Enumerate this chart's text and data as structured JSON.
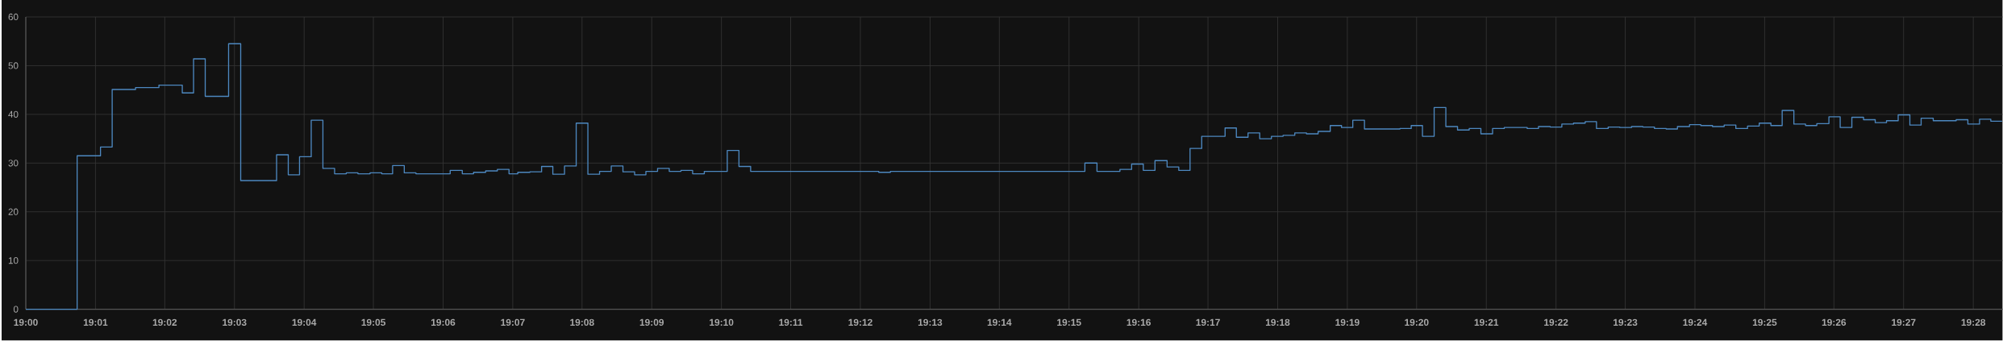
{
  "chart_data": {
    "type": "step",
    "color": "#4d88c0",
    "grid": true,
    "xlim": [
      19.0,
      19.4737
    ],
    "ylim": [
      0,
      60
    ],
    "yticks": [
      0,
      10,
      20,
      30,
      40,
      50,
      60
    ],
    "xticks": [
      {
        "value": 19.0,
        "label": "19:00"
      },
      {
        "value": 19.0167,
        "label": "19:01"
      },
      {
        "value": 19.0333,
        "label": "19:02"
      },
      {
        "value": 19.05,
        "label": "19:03"
      },
      {
        "value": 19.0667,
        "label": "19:04"
      },
      {
        "value": 19.0833,
        "label": "19:05"
      },
      {
        "value": 19.1,
        "label": "19:06"
      },
      {
        "value": 19.1167,
        "label": "19:07"
      },
      {
        "value": 19.1333,
        "label": "19:08"
      },
      {
        "value": 19.15,
        "label": "19:09"
      },
      {
        "value": 19.1667,
        "label": "19:10"
      },
      {
        "value": 19.1833,
        "label": "19:11"
      },
      {
        "value": 19.2,
        "label": "19:12"
      },
      {
        "value": 19.2167,
        "label": "19:13"
      },
      {
        "value": 19.2333,
        "label": "19:14"
      },
      {
        "value": 19.25,
        "label": "19:15"
      },
      {
        "value": 19.2667,
        "label": "19:16"
      },
      {
        "value": 19.2833,
        "label": "19:17"
      },
      {
        "value": 19.3,
        "label": "19:18"
      },
      {
        "value": 19.3167,
        "label": "19:19"
      },
      {
        "value": 19.3333,
        "label": "19:20"
      },
      {
        "value": 19.35,
        "label": "19:21"
      },
      {
        "value": 19.3667,
        "label": "19:22"
      },
      {
        "value": 19.3833,
        "label": "19:23"
      },
      {
        "value": 19.4,
        "label": "19:24"
      },
      {
        "value": 19.4167,
        "label": "19:25"
      },
      {
        "value": 19.4333,
        "label": "19:26"
      },
      {
        "value": 19.45,
        "label": "19:27"
      },
      {
        "value": 19.4667,
        "label": "19:28"
      }
    ],
    "x": [
      19.0,
      19.0123,
      19.0179,
      19.0207,
      19.0263,
      19.0319,
      19.0375,
      19.0402,
      19.043,
      19.0486,
      19.0515,
      19.0601,
      19.0629,
      19.0656,
      19.0684,
      19.0712,
      19.074,
      19.0768,
      19.0796,
      19.0825,
      19.0853,
      19.0879,
      19.0907,
      19.0935,
      19.1017,
      19.1046,
      19.1073,
      19.1102,
      19.113,
      19.1158,
      19.1179,
      19.1208,
      19.1236,
      19.1263,
      19.1291,
      19.1319,
      19.1347,
      19.1375,
      19.1403,
      19.1431,
      19.1459,
      19.1486,
      19.1514,
      19.1542,
      19.157,
      19.1598,
      19.1626,
      19.1681,
      19.1709,
      19.1737,
      19.2044,
      19.2072,
      19.2538,
      19.2567,
      19.2622,
      19.265,
      19.2678,
      19.2706,
      19.2735,
      19.2763,
      19.279,
      19.2818,
      19.2874,
      19.2901,
      19.2929,
      19.2957,
      19.2985,
      19.3013,
      19.3041,
      19.3069,
      19.3097,
      19.3126,
      19.3153,
      19.318,
      19.3208,
      19.3293,
      19.332,
      19.3347,
      19.3375,
      19.3403,
      19.3431,
      19.3459,
      19.3487,
      19.3515,
      19.3543,
      19.3598,
      19.3625,
      19.3653,
      19.3681,
      19.3709,
      19.3737,
      19.3764,
      19.3792,
      19.382,
      19.3848,
      19.3875,
      19.3903,
      19.3931,
      19.3958,
      19.3987,
      19.4014,
      19.4042,
      19.407,
      19.4098,
      19.4126,
      19.4154,
      19.4182,
      19.4209,
      19.4237,
      19.4265,
      19.4292,
      19.4321,
      19.4348,
      19.4376,
      19.4404,
      19.4432,
      19.4459,
      19.4487,
      19.4515,
      19.4542,
      19.4571,
      19.4626,
      19.4654,
      19.4682,
      19.4709,
      19.4736
    ],
    "values": [
      0,
      31.5,
      33.3,
      45.1,
      45.5,
      46.0,
      44.4,
      51.4,
      43.7,
      54.5,
      26.4,
      31.7,
      27.6,
      31.3,
      38.8,
      28.9,
      27.8,
      28.0,
      27.8,
      28.0,
      27.8,
      29.5,
      28.0,
      27.8,
      28.5,
      27.8,
      28.1,
      28.4,
      28.7,
      27.8,
      28.1,
      28.2,
      29.3,
      27.7,
      29.4,
      38.2,
      27.7,
      28.3,
      29.4,
      28.2,
      27.6,
      28.3,
      28.9,
      28.3,
      28.5,
      27.8,
      28.3,
      32.6,
      29.3,
      28.3,
      28.1,
      28.3,
      30.0,
      28.3,
      28.7,
      29.8,
      28.5,
      30.5,
      29.2,
      28.5,
      33.0,
      35.5,
      37.2,
      35.3,
      36.2,
      35.0,
      35.5,
      35.7,
      36.2,
      36.0,
      36.5,
      37.7,
      37.3,
      38.8,
      37.0,
      37.1,
      37.7,
      35.5,
      41.4,
      37.5,
      36.8,
      37.1,
      36.0,
      37.1,
      37.3,
      37.1,
      37.5,
      37.4,
      38.0,
      38.2,
      38.5,
      37.1,
      37.4,
      37.3,
      37.5,
      37.4,
      37.1,
      37.0,
      37.5,
      37.9,
      37.7,
      37.5,
      37.8,
      37.1,
      37.6,
      38.2,
      37.7,
      40.8,
      38.0,
      37.7,
      38.1,
      39.5,
      37.3,
      39.4,
      38.9,
      38.3,
      38.7,
      39.9,
      37.8,
      39.2,
      38.7,
      38.9,
      38.0,
      39.0,
      38.6,
      38.6
    ]
  }
}
